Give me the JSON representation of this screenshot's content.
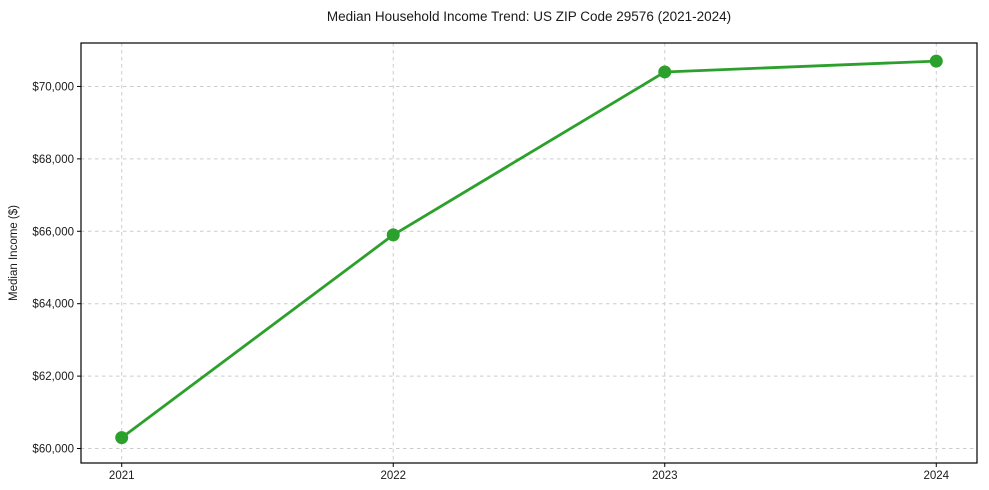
{
  "chart_data": {
    "type": "line",
    "title": "Median Household Income Trend: US ZIP Code 29576 (2021-2024)",
    "xlabel": "",
    "ylabel": "Median Income ($)",
    "x": [
      2021,
      2022,
      2023,
      2024
    ],
    "xtick_labels": [
      "2021",
      "2022",
      "2023",
      "2024"
    ],
    "series": [
      {
        "values": [
          60300,
          65900,
          70400,
          70700
        ],
        "color": "#2ca02c",
        "marker": "circle",
        "line_width": 2.8,
        "marker_radius": 6.5
      }
    ],
    "ytick_values": [
      60000,
      62000,
      64000,
      66000,
      68000,
      70000
    ],
    "ytick_labels": [
      "$60,000",
      "$62,000",
      "$64,000",
      "$66,000",
      "$68,000",
      "$70,000"
    ],
    "xlim": [
      2020.85,
      2024.15
    ],
    "ylim": [
      59600,
      71200
    ],
    "grid": {
      "show": true,
      "color": "#cccccc",
      "dash": "3.5 3.5"
    },
    "legend": {
      "show": false
    },
    "colors": {
      "frame": "#000000",
      "text": "#1a1a1a",
      "background": "#ffffff"
    }
  }
}
